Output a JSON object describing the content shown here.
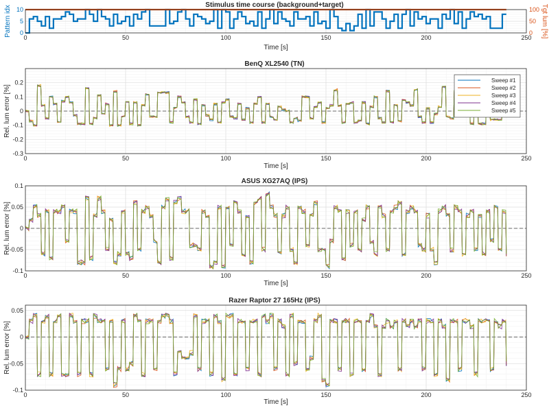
{
  "figure": {
    "colors": {
      "axis": "#262626",
      "grid": "#dedede",
      "minor_grid": "#efefef",
      "zero_line": "#3c3c3c",
      "background": "#ffffff"
    },
    "panels": [
      {
        "id": "stimulus",
        "title": "Stimulus time course (background+target)",
        "xlabel": "Time [s]",
        "ylabel_left": "Pattern idx",
        "ylabel_right": "Tgt lum [%]",
        "xticks": [
          0,
          50,
          100,
          150,
          200,
          250
        ],
        "yticks_left": [
          0,
          5,
          10
        ],
        "yticks_right": [
          0,
          50,
          100
        ],
        "left_color": "#0072bd",
        "right_color": "#d95319"
      },
      {
        "id": "benq",
        "title": "BenQ XL2540 (TN)",
        "xlabel": "Time [s]",
        "ylabel": "Rel. lum error [%]",
        "xticks": [
          0,
          50,
          100,
          150,
          200,
          250
        ],
        "yticks": [
          -0.3,
          -0.2,
          -0.1,
          0,
          0.1,
          0.2
        ],
        "legend": [
          "Sweep #1",
          "Sweep #2",
          "Sweep #3",
          "Sweep #4",
          "Sweep #5"
        ]
      },
      {
        "id": "asus",
        "title": "ASUS XG27AQ (IPS)",
        "xlabel": "Time [s]",
        "ylabel": "Rel. lum error [%]",
        "xticks": [
          0,
          50,
          100,
          150,
          200,
          250
        ],
        "yticks": [
          -0.1,
          -0.05,
          0,
          0.05,
          0.1
        ]
      },
      {
        "id": "razer",
        "title": "Razer Raptor 27 165Hz (IPS)",
        "xlabel": "Time [s]",
        "ylabel": "Rel. lum error [%]",
        "xticks": [
          0,
          50,
          100,
          150,
          200,
          250
        ],
        "yticks": [
          -0.1,
          -0.05,
          0,
          0.05
        ]
      }
    ]
  },
  "chart_data": [
    {
      "type": "line",
      "title": "Stimulus time course (background+target)",
      "xlabel": "Time [s]",
      "ylabel": "Pattern idx",
      "ylabel_right": "Tgt lum [%]",
      "xlim": [
        0,
        250
      ],
      "ylim": [
        0,
        10
      ],
      "ylim_right": [
        0,
        100
      ],
      "grid": true,
      "series": [
        {
          "axis": "left",
          "color": "#0072bd",
          "step": true,
          "x": [
            0,
            2,
            4,
            6,
            8,
            10,
            12,
            14,
            16,
            18,
            20,
            22,
            24,
            26,
            28,
            30,
            32,
            34,
            36,
            38,
            40,
            42,
            44,
            46,
            48,
            50,
            52,
            54,
            56,
            58,
            60,
            62,
            64,
            66,
            68,
            70,
            72,
            74,
            76,
            78,
            80,
            82,
            84,
            86,
            88,
            90,
            92,
            94,
            96,
            98,
            100,
            102,
            104,
            106,
            108,
            110,
            112,
            114,
            116,
            118,
            120,
            122,
            124,
            126,
            128,
            130,
            132,
            134,
            136,
            138,
            140,
            142,
            144,
            146,
            148,
            150,
            152,
            154,
            156,
            158,
            160,
            162,
            164,
            166,
            168,
            170,
            172,
            174,
            176,
            178,
            180,
            182,
            184,
            186,
            188,
            190,
            192,
            194,
            196,
            198,
            200,
            202,
            204,
            206,
            208,
            210,
            212,
            214,
            216,
            218,
            220,
            222,
            224,
            226,
            228,
            230,
            232,
            234,
            236,
            238,
            240
          ],
          "y": [
            0,
            6,
            7,
            5,
            3,
            7,
            2,
            6,
            6,
            7,
            9,
            8,
            5,
            6,
            6,
            10,
            8,
            5,
            10,
            7,
            6,
            3,
            8,
            4,
            5,
            7,
            3,
            8,
            6,
            9,
            10,
            3,
            3,
            3,
            3,
            10,
            4,
            5,
            9,
            10,
            6,
            3,
            8,
            7,
            6,
            4,
            5,
            10,
            2,
            10,
            9,
            2,
            6,
            9,
            7,
            4,
            5,
            3,
            9,
            2,
            6,
            10,
            4,
            9,
            6,
            5,
            3,
            9,
            6,
            6,
            7,
            3,
            9,
            4,
            5,
            2,
            10,
            7,
            2,
            1,
            4,
            1,
            3,
            8,
            2,
            10,
            3,
            9,
            9,
            6,
            2,
            5,
            8,
            2,
            8,
            10,
            3,
            9,
            6,
            7,
            4,
            6,
            6,
            2,
            8,
            6,
            10,
            4,
            9,
            2,
            6,
            9,
            7,
            8,
            6,
            7,
            2,
            2,
            2,
            8,
            8
          ]
        },
        {
          "axis": "right",
          "color": "#d95319",
          "x": [
            0,
            240
          ],
          "y": [
            100,
            100
          ]
        }
      ]
    },
    {
      "type": "line",
      "title": "BenQ XL2540 (TN)",
      "xlabel": "Time [s]",
      "ylabel": "Rel. lum error [%]",
      "xlim": [
        0,
        250
      ],
      "ylim": [
        -0.3,
        0.3
      ],
      "grid": true,
      "legend_position": "top-right",
      "series": [
        {
          "name": "Sweep #1",
          "color": "#0072bd"
        },
        {
          "name": "Sweep #2",
          "color": "#d95319"
        },
        {
          "name": "Sweep #3",
          "color": "#edb120"
        },
        {
          "name": "Sweep #4",
          "color": "#7e2f8e"
        },
        {
          "name": "Sweep #5",
          "color": "#77ac30"
        }
      ],
      "x": [
        0,
        2,
        4,
        6,
        8,
        10,
        12,
        14,
        16,
        18,
        20,
        22,
        24,
        26,
        28,
        30,
        32,
        34,
        36,
        38,
        40,
        42,
        44,
        46,
        48,
        50,
        52,
        54,
        56,
        58,
        60,
        62,
        64,
        66,
        68,
        70,
        72,
        74,
        76,
        78,
        80,
        82,
        84,
        86,
        88,
        90,
        92,
        94,
        96,
        98,
        100,
        102,
        104,
        106,
        108,
        110,
        112,
        114,
        116,
        118,
        120,
        122,
        124,
        126,
        128,
        130,
        132,
        134,
        136,
        138,
        140,
        142,
        144,
        146,
        148,
        150,
        152,
        154,
        156,
        158,
        160,
        162,
        164,
        166,
        168,
        170,
        172,
        174,
        176,
        178,
        180,
        182,
        184,
        186,
        188,
        190,
        192,
        194,
        196,
        198,
        200,
        202,
        204,
        206,
        208,
        210,
        212,
        214,
        216,
        218,
        220,
        222,
        224,
        226,
        228,
        230,
        232,
        234,
        236,
        238,
        240
      ],
      "y": [
        0,
        -0.07,
        -0.1,
        0.18,
        0.04,
        -0.05,
        0.1,
        0.05,
        -0.08,
        0.07,
        0.1,
        0.06,
        -0.03,
        -0.09,
        -0.09,
        0.16,
        -0.09,
        -0.05,
        0.11,
        -0.02,
        0.05,
        -0.1,
        0.14,
        -0.1,
        -0.04,
        0.06,
        -0.09,
        0.06,
        -0.1,
        0.04,
        0.12,
        -0.04,
        -0.04,
        0.13,
        0.13,
        0.13,
        -0.08,
        0.02,
        0.1,
        0.06,
        -0.04,
        -0.08,
        0.08,
        -0.09,
        0.04,
        -0.03,
        -0.06,
        0.05,
        -0.08,
        0.06,
        0.08,
        -0.04,
        -0.05,
        0.05,
        -0.06,
        0.02,
        -0.08,
        0.05,
        0.1,
        -0.08,
        0.05,
        -0.04,
        -0.06,
        0.03,
        0.01,
        0.0,
        -0.08,
        -0.05,
        -0.07,
        0.1,
        0.1,
        -0.05,
        0.03,
        0.06,
        -0.08,
        0.02,
        0.04,
        0.15,
        0.04,
        -0.08,
        0.05,
        0.06,
        -0.08,
        -0.07,
        0.06,
        -0.09,
        0.03,
        0.1,
        -0.05,
        -0.08,
        0.14,
        -0.08,
        0.04,
        -0.07,
        0.08,
        0.06,
        0.04,
        0.15,
        -0.04,
        -0.08,
        0.02,
        -0.08,
        -0.02,
        0.03,
        0.17,
        -0.04,
        -0.05,
        0.14,
        0.1,
        0.15,
        0.06,
        -0.09,
        0.03,
        -0.09,
        -0.09,
        0.02,
        -0.06,
        -0.06,
        -0.06,
        0.05,
        -0.04
      ],
      "sweep_spread": 0.008
    },
    {
      "type": "line",
      "title": "ASUS XG27AQ (IPS)",
      "xlabel": "Time [s]",
      "ylabel": "Rel. lum error [%]",
      "xlim": [
        0,
        250
      ],
      "ylim": [
        -0.1,
        0.1
      ],
      "grid": true,
      "series": [
        {
          "name": "Sweep #1",
          "color": "#0072bd"
        },
        {
          "name": "Sweep #2",
          "color": "#d95319"
        },
        {
          "name": "Sweep #3",
          "color": "#edb120"
        },
        {
          "name": "Sweep #4",
          "color": "#7e2f8e"
        },
        {
          "name": "Sweep #5",
          "color": "#77ac30"
        }
      ],
      "x": [
        0,
        2,
        4,
        6,
        8,
        10,
        12,
        14,
        16,
        18,
        20,
        22,
        24,
        26,
        28,
        30,
        32,
        34,
        36,
        38,
        40,
        42,
        44,
        46,
        48,
        50,
        52,
        54,
        56,
        58,
        60,
        62,
        64,
        66,
        68,
        70,
        72,
        74,
        76,
        78,
        80,
        82,
        84,
        86,
        88,
        90,
        92,
        94,
        96,
        98,
        100,
        102,
        104,
        106,
        108,
        110,
        112,
        114,
        116,
        118,
        120,
        122,
        124,
        126,
        128,
        130,
        132,
        134,
        136,
        138,
        140,
        142,
        144,
        146,
        148,
        150,
        152,
        154,
        156,
        158,
        160,
        162,
        164,
        166,
        168,
        170,
        172,
        174,
        176,
        178,
        180,
        182,
        184,
        186,
        188,
        190,
        192,
        194,
        196,
        198,
        200,
        202,
        204,
        206,
        208,
        210,
        212,
        214,
        216,
        218,
        220,
        222,
        224,
        226,
        228,
        230,
        232,
        234,
        236,
        238,
        240
      ],
      "y": [
        0,
        0.02,
        0.05,
        0.03,
        -0.06,
        0.04,
        -0.07,
        0.04,
        0.04,
        0.05,
        -0.03,
        0.04,
        0.04,
        -0.08,
        -0.08,
        0.07,
        -0.07,
        0.03,
        0.07,
        0.04,
        -0.05,
        0.02,
        -0.08,
        -0.06,
        0.04,
        -0.06,
        -0.07,
        0.06,
        -0.05,
        0.04,
        0.05,
        0.03,
        -0.03,
        -0.08,
        0.05,
        0.07,
        -0.07,
        0.06,
        0.07,
        0.04,
        0.04,
        -0.04,
        -0.04,
        -0.05,
        0.04,
        0.03,
        -0.09,
        -0.08,
        0.05,
        -0.09,
        0.05,
        -0.04,
        0.06,
        0.04,
        -0.06,
        0.03,
        -0.08,
        0.06,
        0.07,
        -0.05,
        0.08,
        0.05,
        0.03,
        -0.06,
        0.03,
        0.05,
        -0.05,
        -0.08,
        0.05,
        0.04,
        -0.04,
        0.03,
        0.06,
        -0.05,
        -0.05,
        -0.09,
        -0.03,
        0.05,
        0.04,
        -0.07,
        0.04,
        -0.04,
        0.04,
        -0.05,
        0.02,
        0.05,
        -0.03,
        -0.06,
        0.05,
        0.03,
        -0.05,
        0.04,
        0.05,
        0.06,
        -0.06,
        0.04,
        0.05,
        0.04,
        -0.04,
        -0.05,
        0.03,
        -0.05,
        -0.08,
        0.04,
        0.05,
        0.03,
        -0.05,
        0.05,
        0.04,
        -0.06,
        0.03,
        0.04,
        -0.05,
        0.03,
        -0.06,
        0.04,
        -0.03,
        0.05,
        -0.05,
        0.04,
        -0.06
      ],
      "sweep_spread": 0.006
    },
    {
      "type": "line",
      "title": "Razer Raptor 27 165Hz (IPS)",
      "xlabel": "Time [s]",
      "ylabel": "Rel. lum error [%]",
      "xlim": [
        0,
        250
      ],
      "ylim": [
        -0.1,
        0.06
      ],
      "grid": true,
      "series": [
        {
          "name": "Sweep #1",
          "color": "#0072bd"
        },
        {
          "name": "Sweep #2",
          "color": "#d95319"
        },
        {
          "name": "Sweep #3",
          "color": "#edb120"
        },
        {
          "name": "Sweep #4",
          "color": "#7e2f8e"
        },
        {
          "name": "Sweep #5",
          "color": "#77ac30"
        }
      ],
      "x": [
        0,
        2,
        4,
        6,
        8,
        10,
        12,
        14,
        16,
        18,
        20,
        22,
        24,
        26,
        28,
        30,
        32,
        34,
        36,
        38,
        40,
        42,
        44,
        46,
        48,
        50,
        52,
        54,
        56,
        58,
        60,
        62,
        64,
        66,
        68,
        70,
        72,
        74,
        76,
        78,
        80,
        82,
        84,
        86,
        88,
        90,
        92,
        94,
        96,
        98,
        100,
        102,
        104,
        106,
        108,
        110,
        112,
        114,
        116,
        118,
        120,
        122,
        124,
        126,
        128,
        130,
        132,
        134,
        136,
        138,
        140,
        142,
        144,
        146,
        148,
        150,
        152,
        154,
        156,
        158,
        160,
        162,
        164,
        166,
        168,
        170,
        172,
        174,
        176,
        178,
        180,
        182,
        184,
        186,
        188,
        190,
        192,
        194,
        196,
        198,
        200,
        202,
        204,
        206,
        208,
        210,
        212,
        214,
        216,
        218,
        220,
        222,
        224,
        226,
        228,
        230,
        232,
        234,
        236,
        238,
        240
      ],
      "y": [
        0,
        0.03,
        0.04,
        -0.07,
        0.03,
        0.04,
        -0.07,
        0.03,
        0.04,
        -0.07,
        -0.07,
        0.04,
        0.03,
        -0.07,
        0.03,
        0.03,
        -0.07,
        0.04,
        0.03,
        0.03,
        -0.06,
        0.03,
        -0.09,
        -0.06,
        0.03,
        -0.06,
        -0.05,
        0.04,
        0.03,
        -0.07,
        0.03,
        0.03,
        -0.06,
        0.03,
        0.04,
        0.04,
        0.03,
        -0.07,
        -0.03,
        -0.04,
        -0.04,
        -0.03,
        0.04,
        -0.06,
        0.03,
        0.03,
        -0.07,
        0.04,
        0.03,
        -0.08,
        0.04,
        0.04,
        -0.07,
        0.03,
        0.03,
        -0.06,
        0.03,
        0.03,
        -0.07,
        0.04,
        0.03,
        0.04,
        -0.06,
        0.03,
        0.02,
        -0.07,
        0.04,
        -0.05,
        0.03,
        0.03,
        -0.06,
        -0.04,
        0.03,
        0.04,
        -0.08,
        -0.09,
        0.03,
        0.03,
        -0.06,
        0.03,
        0.03,
        -0.07,
        0.03,
        0.03,
        -0.06,
        0.03,
        0.04,
        0.02,
        -0.07,
        0.02,
        0.03,
        0.02,
        0.03,
        -0.06,
        0.03,
        0.02,
        0.03,
        0.02,
        0.03,
        -0.06,
        0.03,
        0.03,
        -0.07,
        0.03,
        0.02,
        -0.08,
        0.03,
        0.03,
        -0.06,
        0.03,
        0.03,
        0.02,
        -0.07,
        0.03,
        0.03,
        0.03,
        -0.06,
        0.03,
        0.02,
        0.03,
        -0.05
      ],
      "sweep_spread": 0.005
    }
  ]
}
